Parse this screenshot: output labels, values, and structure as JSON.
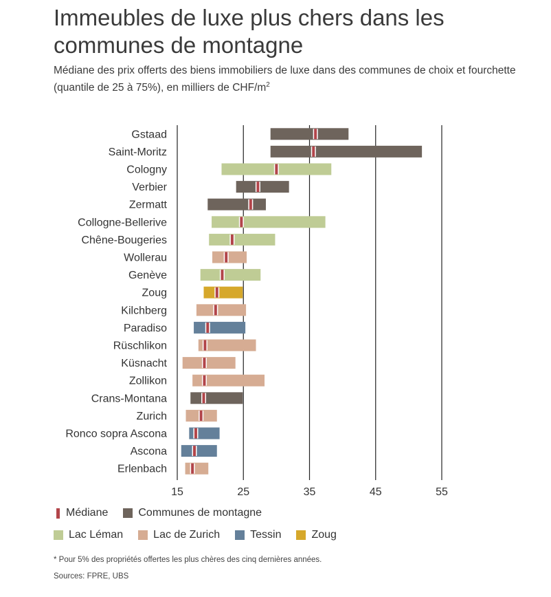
{
  "title": "Immeubles de luxe plus chers dans les communes de montagne",
  "subtitle": "Médiane des prix offerts des biens immobiliers de luxe dans des communes de choix et fourchette (quantile de 25 à 75%), en milliers de CHF/m",
  "subtitle_sup": "2",
  "colors": {
    "median": "#b2454a",
    "Communes de montagne": "#6e645c",
    "Lac Léman": "#bfcc95",
    "Lac de Zurich": "#d6ac93",
    "Tessin": "#64809a",
    "Zoug": "#d6a82b"
  },
  "legend": [
    {
      "key": "median",
      "label": "Médiane"
    },
    {
      "key": "Communes de montagne",
      "label": "Communes de montagne"
    },
    {
      "key": "Lac Léman",
      "label": "Lac Léman"
    },
    {
      "key": "Lac de Zurich",
      "label": "Lac de Zurich"
    },
    {
      "key": "Tessin",
      "label": "Tessin"
    },
    {
      "key": "Zoug",
      "label": "Zoug"
    }
  ],
  "footnote": "* Pour 5% des propriétés offertes les plus chères des cinq dernières années.",
  "sources": "Sources: FPRE, UBS",
  "chart_data": {
    "type": "range-bar",
    "orientation": "horizontal",
    "xlim": [
      15,
      55
    ],
    "xticks": [
      15,
      25,
      35,
      45,
      55
    ],
    "grid": "vertical",
    "legend_position": "bottom",
    "rows": [
      {
        "label": "Gstaad",
        "group": "Communes de montagne",
        "q25": 29.1,
        "median": 35.9,
        "q75": 40.9
      },
      {
        "label": "Saint-Moritz",
        "group": "Communes de montagne",
        "q25": 29.1,
        "median": 35.6,
        "q75": 52.0
      },
      {
        "label": "Cologny",
        "group": "Lac Léman",
        "q25": 21.7,
        "median": 30.0,
        "q75": 38.3
      },
      {
        "label": "Verbier",
        "group": "Communes de montagne",
        "q25": 23.9,
        "median": 27.2,
        "q75": 31.9
      },
      {
        "label": "Zermatt",
        "group": "Communes de montagne",
        "q25": 19.6,
        "median": 26.1,
        "q75": 28.4
      },
      {
        "label": "Collogne-Bellerive",
        "group": "Lac Léman",
        "q25": 20.2,
        "median": 24.7,
        "q75": 37.4
      },
      {
        "label": "Chêne-Bougeries",
        "group": "Lac Léman",
        "q25": 19.8,
        "median": 23.3,
        "q75": 29.8
      },
      {
        "label": "Wollerau",
        "group": "Lac de Zurich",
        "q25": 20.3,
        "median": 22.4,
        "q75": 25.5
      },
      {
        "label": "Genève",
        "group": "Lac Léman",
        "q25": 18.5,
        "median": 21.8,
        "q75": 27.6
      },
      {
        "label": "Zoug",
        "group": "Zoug",
        "q25": 19.0,
        "median": 21.0,
        "q75": 24.9
      },
      {
        "label": "Kilchberg",
        "group": "Lac de Zurich",
        "q25": 17.9,
        "median": 20.8,
        "q75": 25.4
      },
      {
        "label": "Paradiso",
        "group": "Tessin",
        "q25": 17.5,
        "median": 19.6,
        "q75": 25.3
      },
      {
        "label": "Rüschlikon",
        "group": "Lac de Zurich",
        "q25": 18.2,
        "median": 19.2,
        "q75": 26.9
      },
      {
        "label": "Küsnacht",
        "group": "Lac de Zurich",
        "q25": 15.8,
        "median": 19.1,
        "q75": 23.8
      },
      {
        "label": "Zollikon",
        "group": "Lac de Zurich",
        "q25": 17.3,
        "median": 19.1,
        "q75": 28.2
      },
      {
        "label": "Crans-Montana",
        "group": "Communes de montagne",
        "q25": 17.0,
        "median": 19.0,
        "q75": 24.9
      },
      {
        "label": "Zurich",
        "group": "Lac de Zurich",
        "q25": 16.3,
        "median": 18.6,
        "q75": 21.0
      },
      {
        "label": "Ronco sopra Ascona",
        "group": "Tessin",
        "q25": 16.8,
        "median": 17.8,
        "q75": 21.4
      },
      {
        "label": "Ascona",
        "group": "Tessin",
        "q25": 15.6,
        "median": 17.6,
        "q75": 21.0
      },
      {
        "label": "Erlenbach",
        "group": "Lac de Zurich",
        "q25": 16.2,
        "median": 17.3,
        "q75": 19.7
      }
    ]
  }
}
